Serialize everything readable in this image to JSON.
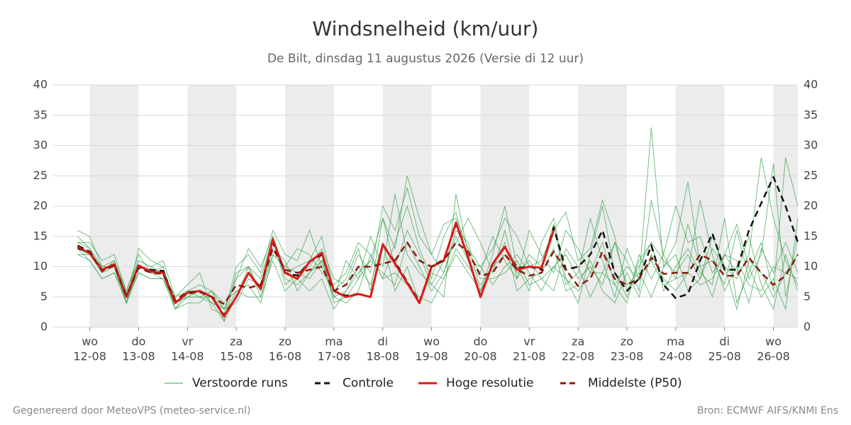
{
  "chart_data": {
    "type": "line",
    "title": "Windsnelheid (km/uur)",
    "subtitle": "De Bilt, dinsdag 11 augustus 2026 (Versie di 12 uur)",
    "footer_left": "Gegenereerd door MeteoVPS (meteo-service.nl)",
    "footer_right": "Bron: ECMWF AIFS/KNMI Ens",
    "x": [
      11.75,
      12,
      12.25,
      12.5,
      12.75,
      13,
      13.25,
      13.5,
      13.75,
      14,
      14.25,
      14.5,
      14.75,
      15,
      15.25,
      15.5,
      15.75,
      16,
      16.25,
      16.5,
      16.75,
      17,
      17.25,
      17.5,
      17.75,
      18,
      18.25,
      18.5,
      18.75,
      19,
      19.25,
      19.5,
      19.75,
      20,
      20.25,
      20.5,
      20.75,
      21,
      21.25,
      21.5,
      21.75,
      22,
      22.25,
      22.5,
      22.75,
      23,
      23.25,
      23.5,
      23.75,
      24,
      24.25,
      24.5,
      24.75,
      25,
      25.25,
      25.5,
      25.75,
      26,
      26.25,
      26.5
    ],
    "xlim": [
      11.25,
      26.5
    ],
    "xticks": [
      {
        "value": 12,
        "weekday": "wo",
        "label": "12-08"
      },
      {
        "value": 13,
        "weekday": "do",
        "label": "13-08"
      },
      {
        "value": 14,
        "weekday": "vr",
        "label": "14-08"
      },
      {
        "value": 15,
        "weekday": "za",
        "label": "15-08"
      },
      {
        "value": 16,
        "weekday": "zo",
        "label": "16-08"
      },
      {
        "value": 17,
        "weekday": "ma",
        "label": "17-08"
      },
      {
        "value": 18,
        "weekday": "di",
        "label": "18-08"
      },
      {
        "value": 19,
        "weekday": "wo",
        "label": "19-08"
      },
      {
        "value": 20,
        "weekday": "do",
        "label": "20-08"
      },
      {
        "value": 21,
        "weekday": "vr",
        "label": "21-08"
      },
      {
        "value": 22,
        "weekday": "za",
        "label": "22-08"
      },
      {
        "value": 23,
        "weekday": "zo",
        "label": "23-08"
      },
      {
        "value": 24,
        "weekday": "ma",
        "label": "24-08"
      },
      {
        "value": 25,
        "weekday": "di",
        "label": "25-08"
      },
      {
        "value": 26,
        "weekday": "wo",
        "label": "26-08"
      }
    ],
    "ylim": [
      0,
      40
    ],
    "yticks": [
      0,
      5,
      10,
      15,
      20,
      25,
      30,
      35,
      40
    ],
    "grid": true,
    "legend": "bottom",
    "series": [
      {
        "name": "Verstoorde runs",
        "color": "#36a04a",
        "members": [
          [
            16,
            15,
            10,
            11,
            4,
            13,
            11,
            10,
            3,
            6,
            5,
            6,
            1,
            5,
            10,
            8,
            15,
            8,
            7,
            9,
            12,
            4,
            5,
            8,
            11,
            18,
            13,
            25,
            18,
            12,
            9,
            16,
            14,
            6,
            12,
            20,
            10,
            6,
            14,
            18,
            8,
            4,
            12,
            20,
            9,
            5,
            11,
            14,
            6,
            10,
            13,
            9,
            7,
            18,
            4,
            9,
            14,
            6,
            28,
            20
          ],
          [
            12,
            11,
            8,
            9,
            5,
            9,
            8,
            8,
            4,
            5,
            6,
            4,
            3,
            8,
            10,
            6,
            12,
            10,
            13,
            12,
            9,
            7,
            9,
            14,
            12,
            8,
            14,
            20,
            13,
            8,
            15,
            19,
            11,
            10,
            7,
            10,
            12,
            9,
            6,
            10,
            12,
            8,
            10,
            7,
            14,
            11,
            6,
            21,
            12,
            8,
            17,
            10,
            5,
            12,
            9,
            15,
            7,
            3,
            12,
            6
          ],
          [
            14,
            14,
            11,
            12,
            6,
            11,
            10,
            11,
            5,
            7,
            9,
            3,
            2,
            10,
            12,
            9,
            16,
            12,
            11,
            16,
            10,
            5,
            11,
            8,
            15,
            10,
            22,
            12,
            9,
            7,
            11,
            14,
            18,
            14,
            9,
            16,
            8,
            12,
            10,
            17,
            7,
            9,
            18,
            11,
            5,
            13,
            8,
            33,
            10,
            14,
            24,
            10,
            11,
            7,
            16,
            8,
            12,
            27,
            5,
            15
          ],
          [
            13,
            12,
            10,
            10,
            4,
            10,
            9,
            9,
            3,
            4,
            4,
            6,
            4,
            6,
            5,
            5,
            11,
            6,
            8,
            6,
            8,
            3,
            6,
            10,
            7,
            14,
            6,
            10,
            4,
            9,
            8,
            13,
            10,
            7,
            10,
            12,
            9,
            11,
            8,
            6,
            13,
            10,
            5,
            9,
            14,
            7,
            9,
            5,
            10,
            12,
            6,
            8,
            15,
            10,
            3,
            11,
            9,
            5,
            9,
            8
          ],
          [
            15,
            13,
            9,
            11,
            6,
            12,
            9,
            10,
            4,
            6,
            7,
            6,
            3,
            4,
            8,
            7,
            15,
            9,
            10,
            11,
            15,
            6,
            8,
            13,
            6,
            18,
            10,
            16,
            12,
            7,
            5,
            22,
            12,
            9,
            15,
            11,
            8,
            16,
            12,
            9,
            16,
            13,
            9,
            14,
            7,
            4,
            12,
            8,
            12,
            20,
            14,
            15,
            9,
            12,
            17,
            10,
            5,
            8,
            3,
            18
          ],
          [
            12,
            12,
            9,
            10,
            4,
            9,
            8,
            8,
            4,
            5,
            5,
            4,
            1,
            9,
            10,
            5,
            13,
            11,
            6,
            9,
            11,
            5,
            4,
            6,
            12,
            8,
            9,
            7,
            5,
            4,
            8,
            12,
            9,
            6,
            10,
            14,
            6,
            8,
            9,
            13,
            6,
            7,
            11,
            6,
            4,
            9,
            5,
            12,
            8,
            6,
            9,
            21,
            12,
            6,
            10,
            4,
            13,
            9,
            14,
            9
          ],
          [
            14,
            13,
            10,
            10,
            5,
            11,
            10,
            9,
            5,
            6,
            6,
            5,
            3,
            8,
            13,
            10,
            15,
            7,
            9,
            10,
            13,
            8,
            7,
            12,
            9,
            20,
            16,
            23,
            15,
            12,
            17,
            18,
            13,
            10,
            13,
            18,
            15,
            10,
            11,
            16,
            19,
            11,
            13,
            21,
            15,
            6,
            10,
            14,
            11,
            9,
            12,
            8,
            13,
            10,
            8,
            12,
            28,
            18,
            11,
            7
          ],
          [
            13,
            11,
            8,
            9,
            4,
            10,
            9,
            8,
            3,
            5,
            5,
            5,
            2,
            6,
            7,
            4,
            12,
            10,
            9,
            8,
            11,
            5,
            6,
            9,
            11,
            9,
            7,
            14,
            10,
            6,
            9,
            15,
            11,
            8,
            8,
            9,
            11,
            7,
            8,
            10,
            8,
            6,
            9,
            9,
            7,
            10,
            8,
            11,
            7,
            8,
            9,
            7,
            8,
            12,
            11,
            7,
            6,
            10,
            9,
            12
          ]
        ]
      },
      {
        "name": "Controle",
        "color": "#111111",
        "dashed": true,
        "values": [
          13.5,
          12.5,
          9.3,
          10.5,
          5.2,
          10,
          9.5,
          9.3,
          4.2,
          5.5,
          6,
          5,
          2,
          5,
          9,
          6.5,
          14,
          9,
          8.5,
          10.8,
          12,
          6,
          5.2,
          5.5,
          5,
          13.5,
          10.8,
          7.5,
          4.2,
          10,
          11.2,
          17,
          11.5,
          5.2,
          10.5,
          13.2,
          9.8,
          10,
          9.5,
          16.5,
          9.5,
          10,
          12,
          16,
          9,
          6,
          8,
          13.5,
          7,
          4.8,
          5.5,
          11,
          15.5,
          9.5,
          9.5,
          16,
          20.5,
          24.8,
          20,
          14
        ]
      },
      {
        "name": "Hoge resolutie",
        "color": "#dd1a1a",
        "dashed": false,
        "values": [
          13.3,
          12.2,
          9.5,
          10.4,
          5,
          10.2,
          9.2,
          9,
          4,
          5.7,
          6,
          5,
          1.8,
          5,
          9,
          6.3,
          14.5,
          9,
          8,
          10.8,
          12.3,
          6,
          5,
          5.5,
          5,
          13.7,
          10.5,
          7.3,
          4,
          10,
          11,
          17.3,
          11.5,
          5,
          10.5,
          13.3,
          9.5,
          10,
          9.8,
          16,
          null,
          null,
          null,
          null,
          null,
          null,
          null,
          null,
          null,
          null,
          null,
          null,
          null,
          null,
          null,
          null,
          null,
          null,
          null,
          null
        ]
      },
      {
        "name": "Middelste (P50)",
        "color": "#8b1a10",
        "dashed": true,
        "values": [
          13,
          12.5,
          9.3,
          10.2,
          5.3,
          9.8,
          9,
          8.8,
          4.5,
          5.8,
          5.8,
          5,
          3.8,
          7,
          6.5,
          7,
          13,
          9.5,
          9,
          9.5,
          10,
          6,
          7,
          10,
          10,
          10.5,
          11,
          14,
          11,
          10,
          11,
          14,
          12.5,
          8.5,
          9,
          12,
          9.5,
          8.5,
          9,
          12.5,
          9.5,
          6.8,
          8,
          12.5,
          8,
          7,
          8,
          11.5,
          8.8,
          9,
          9,
          12,
          11,
          8.5,
          8.5,
          11.5,
          9,
          7,
          8.5,
          12
        ]
      }
    ]
  }
}
